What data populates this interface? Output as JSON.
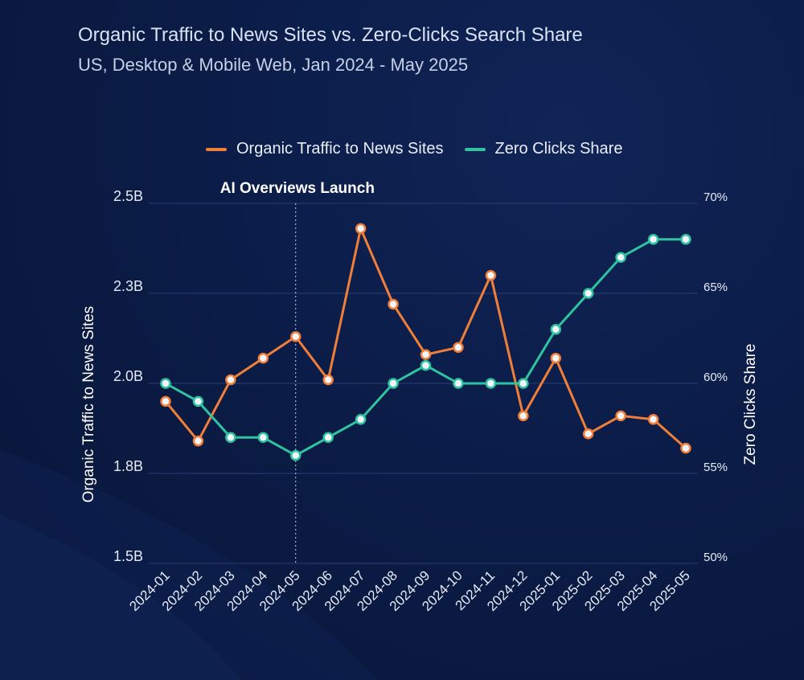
{
  "header": {
    "title": "Organic Traffic to News Sites vs. Zero-Clicks Search Share",
    "subtitle": "US, Desktop & Mobile Web, Jan 2024 - May 2025"
  },
  "colors": {
    "traffic": "#f07f3a",
    "zero_clicks": "#2ec4a0",
    "grid": "#2a3d75",
    "marker_fill": "#f3f5fa"
  },
  "chart_data": {
    "type": "line",
    "title": "Organic Traffic to News Sites vs. Zero-Clicks Search Share",
    "subtitle": "US, Desktop & Mobile Web, Jan 2024 - May 2025",
    "categories": [
      "2024-01",
      "2024-02",
      "2024-03",
      "2024-04",
      "2024-05",
      "2024-06",
      "2024-07",
      "2024-08",
      "2024-09",
      "2024-10",
      "2024-11",
      "2024-12",
      "2025-01",
      "2025-02",
      "2025-03",
      "2025-04",
      "2025-05"
    ],
    "left_axis": {
      "label": "Organic Traffic to News Sites",
      "range": [
        1.5,
        2.5
      ],
      "ticks": [
        1.5,
        1.75,
        2.0,
        2.25,
        2.5
      ],
      "tick_labels": [
        "1.5B",
        "1.8B",
        "2.0B",
        "2.3B",
        "2.5B"
      ]
    },
    "right_axis": {
      "label": "Zero Clicks Share",
      "range": [
        50,
        70
      ],
      "ticks": [
        50,
        55,
        60,
        65,
        70
      ],
      "tick_labels": [
        "50%",
        "55%",
        "60%",
        "65%",
        "70%"
      ]
    },
    "series": [
      {
        "name": "Organic Traffic to News Sites",
        "axis": "left",
        "values": [
          1.95,
          1.84,
          2.01,
          2.07,
          2.13,
          2.01,
          2.43,
          2.22,
          2.08,
          2.1,
          2.3,
          1.91,
          2.07,
          1.86,
          1.91,
          1.9,
          1.82
        ]
      },
      {
        "name": "Zero Clicks Share",
        "axis": "right",
        "values": [
          60,
          59,
          57,
          57,
          56,
          57,
          58,
          60,
          61,
          60,
          60,
          60,
          63,
          65,
          67,
          68,
          68
        ]
      }
    ],
    "annotations": [
      {
        "text": "AI Overviews Launch",
        "x": "2024-05"
      }
    ],
    "legend_position": "top-center",
    "grid": true
  }
}
